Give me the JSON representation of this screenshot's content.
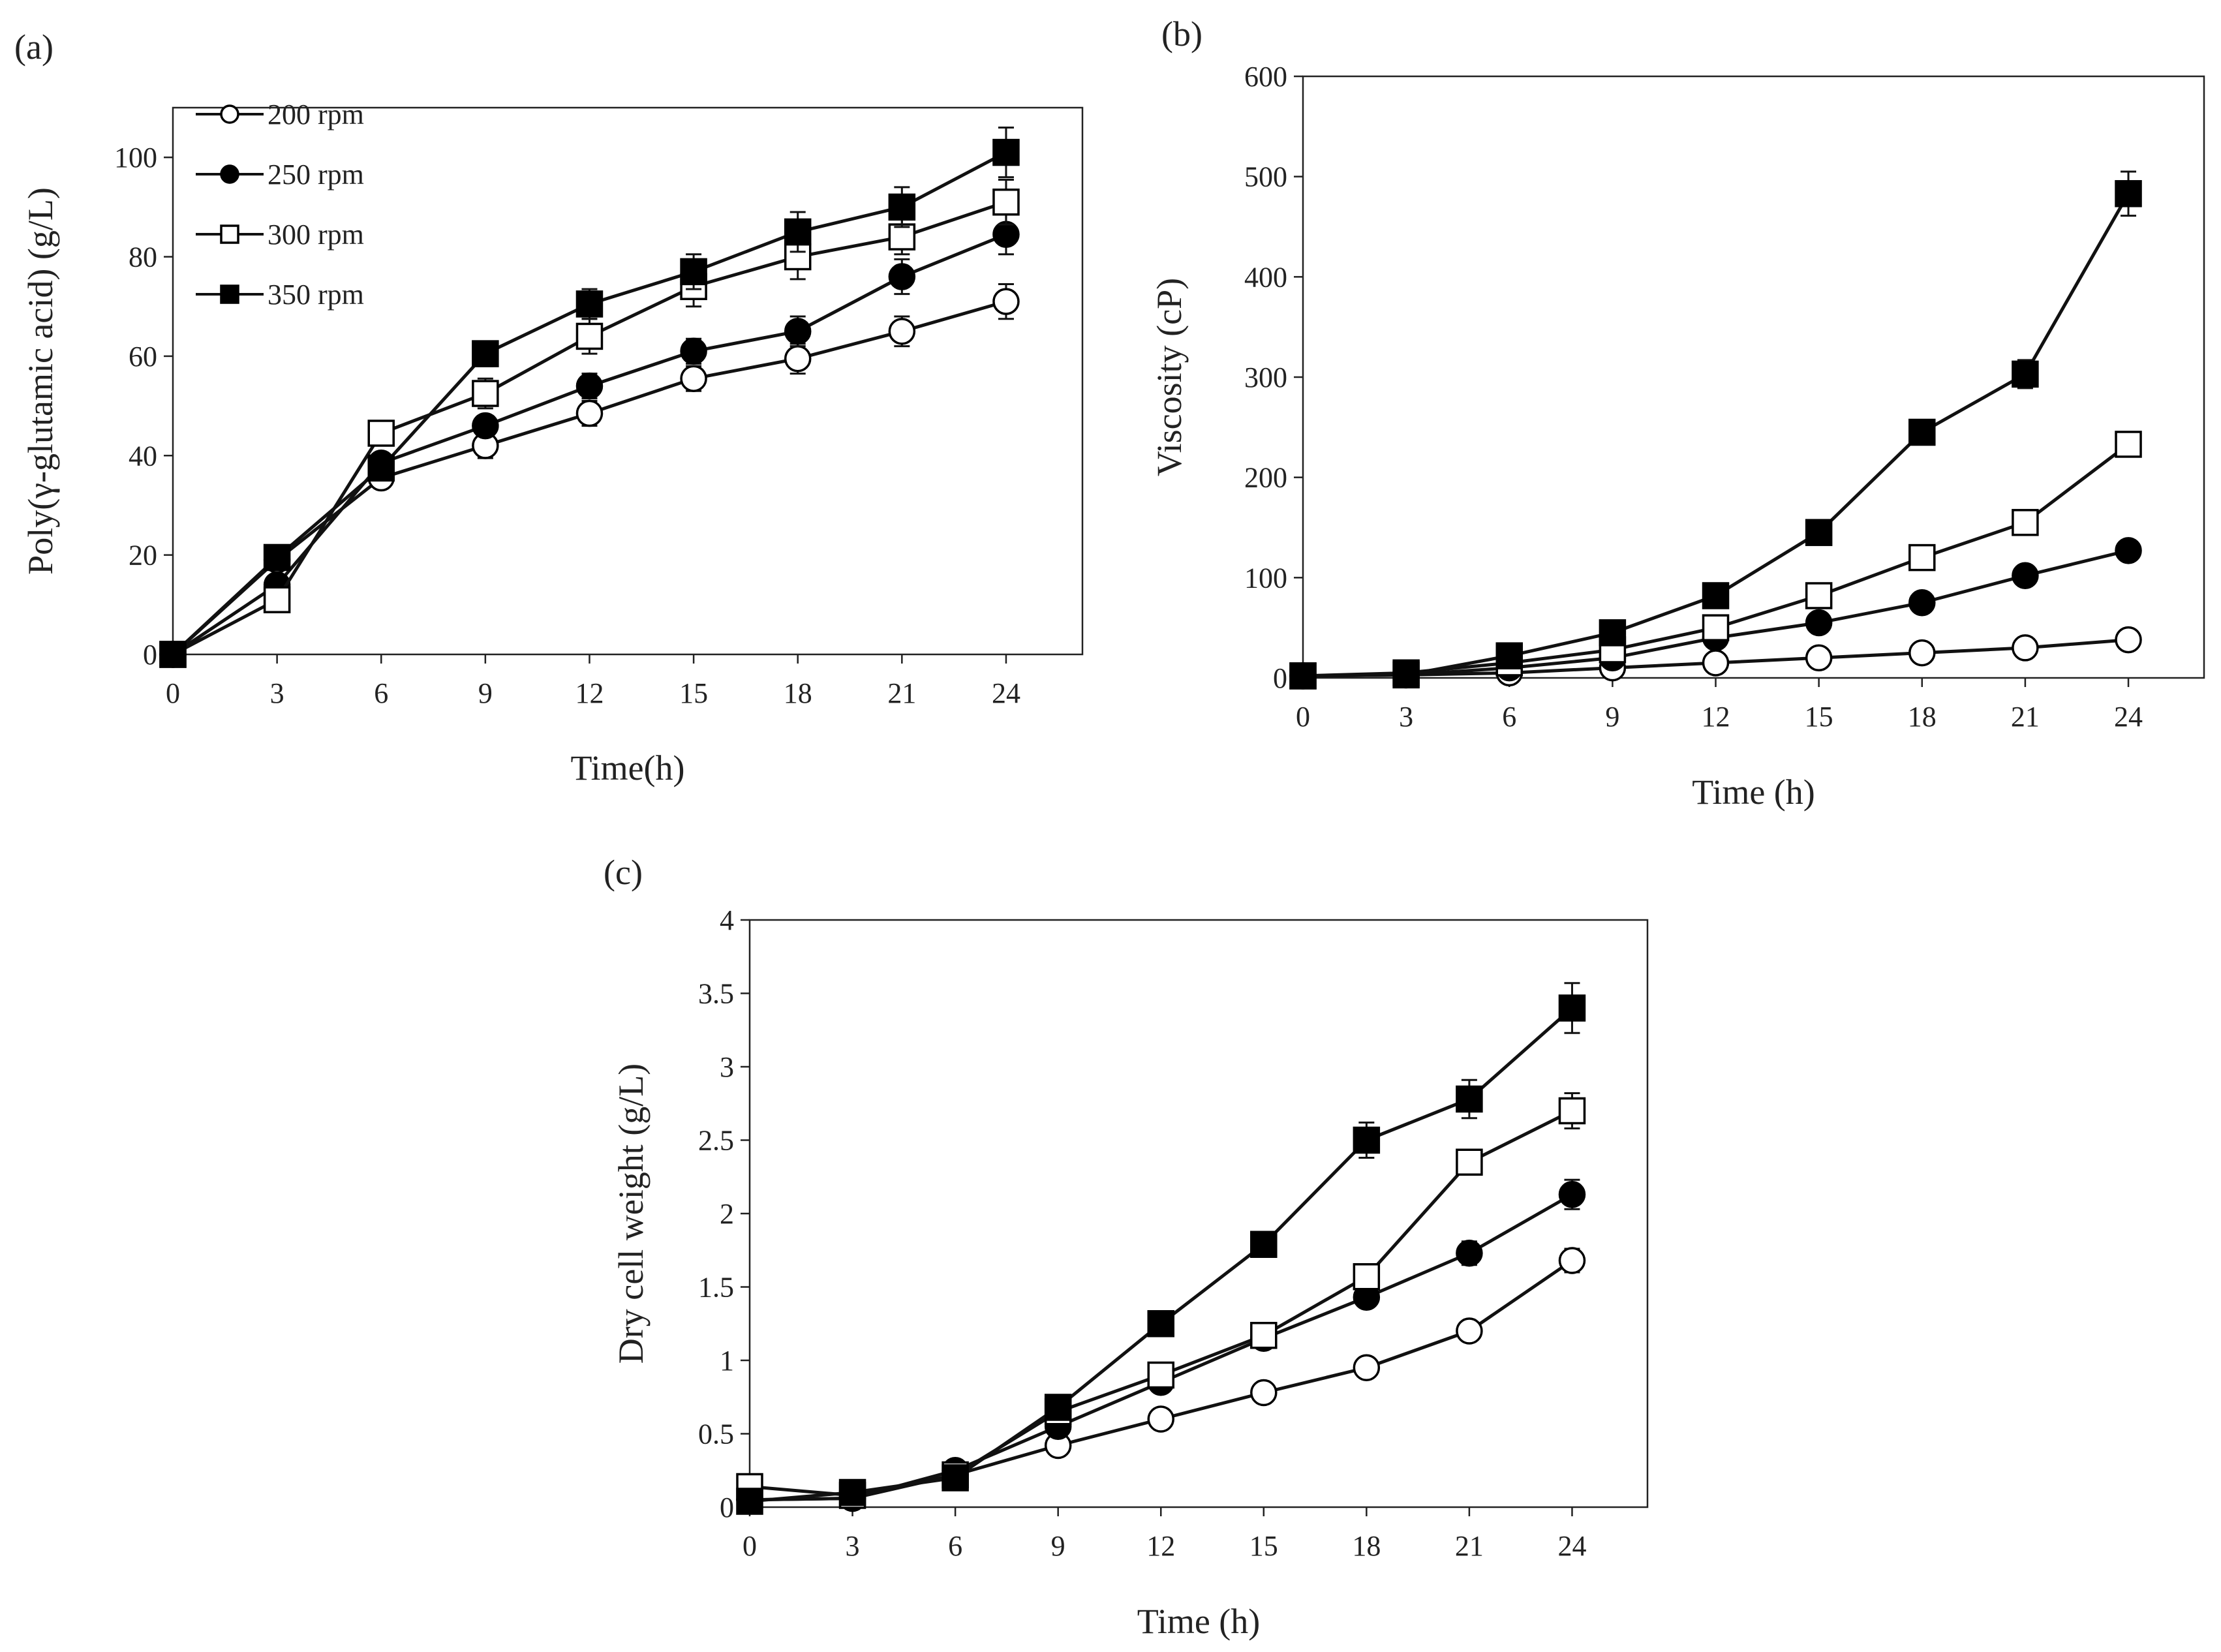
{
  "chart_data": [
    {
      "id": "a",
      "type": "line",
      "panel_label": "(a)",
      "xlabel": "Time(h)",
      "ylabel": "Poly(γ-glutamic  acid)  (g/L)",
      "x": [
        0,
        3,
        6,
        9,
        12,
        15,
        18,
        21,
        24
      ],
      "xlim": [
        0,
        26.2
      ],
      "ylim": [
        0,
        110
      ],
      "xticks": [
        0,
        3,
        6,
        9,
        12,
        15,
        18,
        21,
        24
      ],
      "yticks": [
        0,
        20,
        40,
        60,
        80,
        100
      ],
      "legend": {
        "position": "top-left"
      },
      "series": [
        {
          "name": "200 rpm",
          "marker": "circle-open",
          "values": [
            0,
            19,
            35.5,
            42,
            48.5,
            55.5,
            59.5,
            65,
            71
          ],
          "errors": [
            0,
            1.5,
            1.5,
            2.5,
            2.5,
            2.5,
            3,
            3,
            3.5
          ]
        },
        {
          "name": "250 rpm",
          "marker": "circle-filled",
          "values": [
            0,
            14,
            38.5,
            46,
            54,
            61,
            65,
            76,
            84.5
          ],
          "errors": [
            0,
            1.5,
            1.5,
            2,
            2.5,
            2.5,
            3,
            3.5,
            4
          ]
        },
        {
          "name": "300 rpm",
          "marker": "square-open",
          "values": [
            0,
            11,
            44.5,
            52.5,
            64,
            74,
            80,
            84,
            91
          ],
          "errors": [
            0,
            1,
            1.5,
            3,
            3.5,
            4,
            4.5,
            3.5,
            4.5
          ]
        },
        {
          "name": "350 rpm",
          "marker": "square-filled",
          "values": [
            0,
            19.5,
            37.5,
            60.5,
            70.5,
            77,
            85,
            90,
            101
          ],
          "errors": [
            0,
            1.5,
            1.5,
            2.5,
            3,
            3.5,
            4,
            4,
            5
          ]
        }
      ]
    },
    {
      "id": "b",
      "type": "line",
      "panel_label": "(b)",
      "xlabel": "Time (h)",
      "ylabel": "Viscosity  (cP)",
      "x": [
        0,
        3,
        6,
        9,
        12,
        15,
        18,
        21,
        24
      ],
      "xlim": [
        0,
        26.2
      ],
      "ylim": [
        0,
        600
      ],
      "xticks": [
        0,
        3,
        6,
        9,
        12,
        15,
        18,
        21,
        24
      ],
      "yticks": [
        0,
        100,
        200,
        300,
        400,
        500,
        600
      ],
      "series": [
        {
          "name": "200 rpm",
          "marker": "circle-open",
          "values": [
            2,
            3,
            5,
            10,
            15,
            20,
            25,
            30,
            38
          ],
          "errors": [
            0,
            0,
            1,
            1,
            1,
            2,
            2,
            3,
            3
          ]
        },
        {
          "name": "250 rpm",
          "marker": "circle-filled",
          "values": [
            2,
            3,
            10,
            20,
            40,
            55,
            75,
            102,
            127
          ],
          "errors": [
            0,
            0,
            1,
            2,
            3,
            4,
            5,
            6,
            7
          ]
        },
        {
          "name": "300 rpm",
          "marker": "square-open",
          "values": [
            2,
            5,
            15,
            28,
            50,
            82,
            120,
            155,
            233
          ],
          "errors": [
            0,
            0,
            1,
            2,
            3,
            4,
            6,
            7,
            8
          ]
        },
        {
          "name": "350 rpm",
          "marker": "square-filled",
          "values": [
            2,
            3,
            22,
            45,
            82,
            145,
            245,
            303,
            483
          ],
          "errors": [
            0,
            0,
            2,
            3,
            5,
            6,
            8,
            14,
            22
          ]
        }
      ]
    },
    {
      "id": "c",
      "type": "line",
      "panel_label": "(c)",
      "xlabel": "Time (h)",
      "ylabel": "Dry cell weight  (g/L)",
      "x": [
        0,
        3,
        6,
        9,
        12,
        15,
        18,
        21,
        24
      ],
      "xlim": [
        0,
        26.2
      ],
      "ylim": [
        0,
        4
      ],
      "xticks": [
        0,
        3,
        6,
        9,
        12,
        15,
        18,
        21,
        24
      ],
      "ytick_labels": [
        "0",
        "0.5",
        "1",
        "1.5",
        "2",
        "2.5",
        "3",
        "3.5",
        "4"
      ],
      "yticks": [
        0,
        0.5,
        1,
        1.5,
        2,
        2.5,
        3,
        3.5,
        4
      ],
      "series": [
        {
          "name": "200 rpm",
          "marker": "circle-open",
          "values": [
            0.05,
            0.06,
            0.22,
            0.42,
            0.6,
            0.78,
            0.95,
            1.2,
            1.68
          ],
          "errors": [
            0.01,
            0.01,
            0.02,
            0.03,
            0.03,
            0.04,
            0.04,
            0.05,
            0.08
          ]
        },
        {
          "name": "250 rpm",
          "marker": "circle-filled",
          "values": [
            0.05,
            0.06,
            0.25,
            0.55,
            0.85,
            1.15,
            1.43,
            1.73,
            2.13
          ],
          "errors": [
            0.01,
            0.01,
            0.02,
            0.04,
            0.05,
            0.05,
            0.06,
            0.08,
            0.1
          ]
        },
        {
          "name": "300 rpm",
          "marker": "square-open",
          "values": [
            0.14,
            0.08,
            0.22,
            0.65,
            0.9,
            1.17,
            1.57,
            2.35,
            2.7
          ],
          "errors": [
            0.01,
            0.01,
            0.02,
            0.04,
            0.05,
            0.06,
            0.07,
            0.08,
            0.12
          ]
        },
        {
          "name": "350 rpm",
          "marker": "square-filled",
          "values": [
            0.04,
            0.1,
            0.2,
            0.68,
            1.25,
            1.79,
            2.5,
            2.78,
            3.4
          ],
          "errors": [
            0.01,
            0.01,
            0.02,
            0.04,
            0.05,
            0.06,
            0.12,
            0.13,
            0.17
          ]
        }
      ]
    }
  ]
}
